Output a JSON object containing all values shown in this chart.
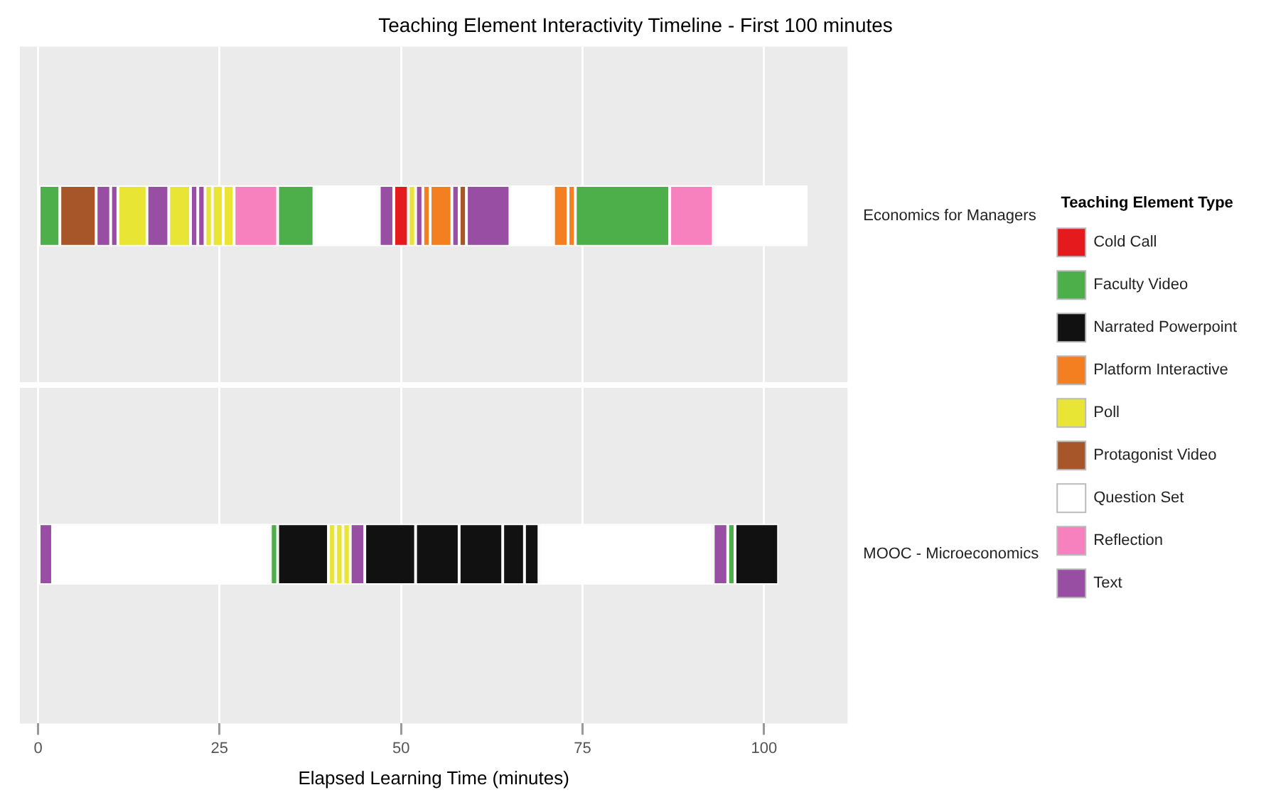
{
  "chart_data": {
    "type": "bar",
    "orientation": "horizontal",
    "title": "Teaching Element Interactivity Timeline - First 100 minutes",
    "xlabel": "Elapsed Learning Time (minutes)",
    "legend_title": "Teaching Element Type",
    "legend": "right",
    "grid": "x",
    "categories": [
      "Economics for Managers",
      "MOOC - Microeconomics"
    ],
    "xlim": [
      -2.5,
      111.5
    ],
    "xticks": [
      0,
      25,
      50,
      75,
      100
    ],
    "series": [
      {
        "name": "Cold Call",
        "color": "#e41a1c",
        "values": [
          2,
          null
        ],
        "base": [
          49,
          null
        ]
      },
      {
        "name": "Faculty Video",
        "color": "#4daf4a",
        "values": [
          3,
          null
        ],
        "base": [
          0,
          null
        ]
      },
      {
        "name": "Narrated Powerpoint",
        "color": "#111111",
        "values": [
          null,
          7
        ],
        "base": [
          null,
          33
        ]
      },
      {
        "name": "Platform Interactive",
        "color": "#f47f20",
        "values": [
          1,
          null
        ],
        "base": [
          53,
          null
        ]
      },
      {
        "name": "Poll",
        "color": "#e8e535",
        "values": [
          4,
          null
        ],
        "base": [
          11,
          null
        ]
      },
      {
        "name": "Protagonist Video",
        "color": "#a65628",
        "values": [
          5,
          null
        ],
        "base": [
          3,
          null
        ]
      },
      {
        "name": "Question Set",
        "color": "#ffffff",
        "values": [
          9,
          null
        ],
        "base": [
          38,
          null
        ]
      },
      {
        "name": "Reflection",
        "color": "#f781bf",
        "values": [
          6,
          null
        ],
        "base": [
          27,
          null
        ]
      },
      {
        "name": "Text",
        "color": "#984ea3",
        "values": [
          2,
          null
        ],
        "base": [
          8,
          null
        ]
      },
      {
        "color": "#984ea3",
        "values": [
          1,
          null
        ],
        "base": [
          10,
          null
        ]
      },
      {
        "color": "#984ea3",
        "values": [
          3,
          null
        ],
        "base": [
          15,
          null
        ]
      },
      {
        "color": "#e8e535",
        "values": [
          3,
          null
        ],
        "base": [
          18,
          null
        ]
      },
      {
        "color": "#984ea3",
        "values": [
          1,
          null
        ],
        "base": [
          21,
          null
        ]
      },
      {
        "color": "#984ea3",
        "values": [
          1,
          null
        ],
        "base": [
          22,
          null
        ]
      },
      {
        "color": "#e8e535",
        "values": [
          1,
          null
        ],
        "base": [
          23,
          null
        ]
      },
      {
        "color": "#e8e535",
        "values": [
          1.5,
          null
        ],
        "base": [
          24,
          null
        ]
      },
      {
        "color": "#e8e535",
        "values": [
          1.5,
          null
        ],
        "base": [
          25.5,
          null
        ]
      },
      {
        "color": "#4daf4a",
        "values": [
          5,
          null
        ],
        "base": [
          33,
          null
        ]
      },
      {
        "color": "#984ea3",
        "values": [
          2,
          null
        ],
        "base": [
          47,
          null
        ]
      },
      {
        "color": "#e8e535",
        "values": [
          1,
          null
        ],
        "base": [
          51,
          null
        ]
      },
      {
        "color": "#984ea3",
        "values": [
          1,
          null
        ],
        "base": [
          52,
          null
        ]
      },
      {
        "color": "#f47f20",
        "values": [
          3,
          null
        ],
        "base": [
          54,
          null
        ]
      },
      {
        "color": "#984ea3",
        "values": [
          1,
          null
        ],
        "base": [
          57,
          null
        ]
      },
      {
        "color": "#a65628",
        "values": [
          1,
          null
        ],
        "base": [
          58,
          null
        ]
      },
      {
        "color": "#984ea3",
        "values": [
          6,
          null
        ],
        "base": [
          59,
          null
        ]
      },
      {
        "color": "#ffffff",
        "values": [
          6,
          null
        ],
        "base": [
          65,
          null
        ]
      },
      {
        "color": "#f47f20",
        "values": [
          2,
          null
        ],
        "base": [
          71,
          null
        ]
      },
      {
        "color": "#f47f20",
        "values": [
          1,
          null
        ],
        "base": [
          73,
          null
        ]
      },
      {
        "color": "#4daf4a",
        "values": [
          13,
          null
        ],
        "base": [
          74,
          null
        ]
      },
      {
        "color": "#f781bf",
        "values": [
          6,
          null
        ],
        "base": [
          87,
          null
        ]
      },
      {
        "color": "#ffffff",
        "values": [
          13,
          null
        ],
        "base": [
          93,
          null
        ]
      },
      {
        "color": "#984ea3",
        "values": [
          null,
          2
        ],
        "base": [
          null,
          0
        ]
      },
      {
        "color": "#ffffff",
        "values": [
          null,
          30
        ],
        "base": [
          null,
          2
        ]
      },
      {
        "color": "#4daf4a",
        "values": [
          null,
          1
        ],
        "base": [
          null,
          32
        ]
      },
      {
        "color": "#e8e535",
        "values": [
          null,
          1
        ],
        "base": [
          null,
          40
        ]
      },
      {
        "color": "#e8e535",
        "values": [
          null,
          1
        ],
        "base": [
          null,
          41
        ]
      },
      {
        "color": "#e8e535",
        "values": [
          null,
          1
        ],
        "base": [
          null,
          42
        ]
      },
      {
        "color": "#984ea3",
        "values": [
          null,
          2
        ],
        "base": [
          null,
          43
        ]
      },
      {
        "color": "#111111",
        "values": [
          null,
          7
        ],
        "base": [
          null,
          45
        ]
      },
      {
        "color": "#111111",
        "values": [
          null,
          6
        ],
        "base": [
          null,
          52
        ]
      },
      {
        "color": "#111111",
        "values": [
          null,
          6
        ],
        "base": [
          null,
          58
        ]
      },
      {
        "color": "#111111",
        "values": [
          null,
          3
        ],
        "base": [
          null,
          64
        ]
      },
      {
        "color": "#111111",
        "values": [
          null,
          2
        ],
        "base": [
          null,
          67
        ]
      },
      {
        "color": "#ffffff",
        "values": [
          null,
          24
        ],
        "base": [
          null,
          69
        ]
      },
      {
        "color": "#984ea3",
        "values": [
          null,
          2
        ],
        "base": [
          null,
          93
        ]
      },
      {
        "color": "#4daf4a",
        "values": [
          null,
          1
        ],
        "base": [
          null,
          95
        ]
      },
      {
        "color": "#111111",
        "values": [
          null,
          6
        ],
        "base": [
          null,
          96
        ]
      }
    ]
  }
}
